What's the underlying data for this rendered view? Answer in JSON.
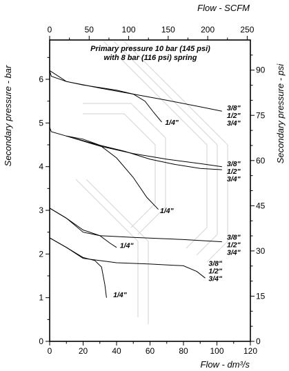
{
  "chart_data": {
    "type": "line",
    "title": "Primary pressure 10 bar (145 psi)",
    "subtitle": "with 8 bar (116 psi) spring",
    "xlabel_bottom": "Flow - dm³/s",
    "xlabel_top": "Flow - SCFM",
    "ylabel_left": "Secondary pressure - bar",
    "ylabel_right": "Secondary pressure - psi",
    "x_bottom": {
      "range": [
        0,
        120
      ],
      "ticks": [
        0,
        20,
        40,
        60,
        80,
        100,
        120
      ]
    },
    "x_top": {
      "range": [
        0,
        254
      ],
      "ticks": [
        0,
        50,
        100,
        150,
        200,
        250
      ]
    },
    "y_left": {
      "range": [
        0,
        6.9
      ],
      "ticks": [
        0,
        1,
        2,
        3,
        4,
        5,
        6
      ]
    },
    "y_right": {
      "range": [
        0,
        100
      ],
      "ticks": [
        0,
        15,
        30,
        45,
        60,
        75,
        90
      ]
    },
    "groups": [
      {
        "set_pressure": 6.2,
        "series": [
          {
            "name": "3/8\" 1/2\" 3/4\"",
            "label_lines": [
              "3/8\"",
              "1/2\"",
              "3/4\""
            ],
            "label_anchor": [
              106,
              5.18
            ],
            "points": [
              [
                0,
                6.2
              ],
              [
                1,
                6.07
              ],
              [
                10,
                5.95
              ],
              [
                30,
                5.8
              ],
              [
                50,
                5.66
              ],
              [
                70,
                5.52
              ],
              [
                90,
                5.37
              ],
              [
                103,
                5.27
              ]
            ]
          },
          {
            "name": "3/8\" 1/2\" 3/4\" (lower)",
            "points": [
              [
                20,
                5.87
              ],
              [
                40,
                5.75
              ],
              [
                50,
                5.66
              ],
              [
                57,
                5.5
              ],
              [
                62,
                5.25
              ],
              [
                67,
                5.02
              ]
            ]
          },
          {
            "name": "1/4\"",
            "label_lines": [
              "1/4\""
            ],
            "label_anchor": [
              69,
              5.02
            ],
            "points": [
              [
                0,
                6.2
              ],
              [
                10,
                5.95
              ],
              [
                20,
                5.87
              ]
            ]
          }
        ]
      },
      {
        "set_pressure": 4.9,
        "series": [
          {
            "name": "3/8\" 1/2\" 3/4\"",
            "label_lines": [
              "3/8\"",
              "1/2\"",
              "3/4\""
            ],
            "label_anchor": [
              106,
              3.9
            ],
            "points": [
              [
                0,
                4.9
              ],
              [
                1,
                4.8
              ],
              [
                10,
                4.7
              ],
              [
                30,
                4.47
              ],
              [
                50,
                4.3
              ],
              [
                70,
                4.17
              ],
              [
                90,
                4.07
              ],
              [
                103,
                4.0
              ]
            ]
          },
          {
            "name": "3/8\" 1/2\" 3/4\" (lower)",
            "points": [
              [
                12,
                4.68
              ],
              [
                30,
                4.49
              ],
              [
                45,
                4.35
              ],
              [
                60,
                4.17
              ],
              [
                75,
                4.05
              ],
              [
                90,
                3.96
              ],
              [
                103,
                3.93
              ]
            ]
          },
          {
            "name": "1/4\"",
            "label_lines": [
              "1/4\""
            ],
            "label_anchor": [
              66,
              3.0
            ],
            "points": [
              [
                10,
                4.7
              ],
              [
                20,
                4.63
              ],
              [
                30,
                4.49
              ],
              [
                40,
                4.2
              ],
              [
                50,
                3.75
              ],
              [
                58,
                3.3
              ],
              [
                65,
                3.02
              ]
            ]
          }
        ]
      },
      {
        "set_pressure": 3.05,
        "series": [
          {
            "name": "3/8\" 1/2\" 3/4\"",
            "label_lines": [
              "3/8\"",
              "1/2\"",
              "3/4\""
            ],
            "label_anchor": [
              106,
              2.22
            ],
            "points": [
              [
                0,
                3.05
              ],
              [
                10,
                2.82
              ],
              [
                20,
                2.5
              ],
              [
                30,
                2.42
              ],
              [
                50,
                2.38
              ],
              [
                80,
                2.33
              ],
              [
                103,
                2.28
              ]
            ]
          },
          {
            "name": "1/4\"",
            "label_lines": [
              "1/4\""
            ],
            "label_anchor": [
              42,
              2.2
            ],
            "points": [
              [
                0,
                3.05
              ],
              [
                10,
                2.82
              ],
              [
                20,
                2.55
              ],
              [
                30,
                2.42
              ],
              [
                36,
                2.25
              ],
              [
                40,
                2.15
              ]
            ]
          }
        ]
      },
      {
        "set_pressure": 2.37,
        "series": [
          {
            "name": "3/8\" 1/2\" 3/4\"",
            "label_lines": [
              "3/8\"",
              "1/2\"",
              "3/4\""
            ],
            "label_anchor": [
              95,
              1.62
            ],
            "points": [
              [
                0,
                2.37
              ],
              [
                10,
                2.15
              ],
              [
                20,
                1.9
              ],
              [
                40,
                1.8
              ],
              [
                60,
                1.77
              ],
              [
                80,
                1.73
              ],
              [
                88,
                1.6
              ],
              [
                93,
                1.45
              ]
            ]
          },
          {
            "name": "1/4\"",
            "label_lines": [
              "1/4\""
            ],
            "label_anchor": [
              38,
              1.07
            ],
            "points": [
              [
                0,
                2.37
              ],
              [
                10,
                2.15
              ],
              [
                20,
                1.92
              ],
              [
                27,
                1.85
              ],
              [
                31,
                1.7
              ],
              [
                33,
                1.3
              ],
              [
                34,
                1.0
              ]
            ]
          }
        ]
      }
    ]
  }
}
